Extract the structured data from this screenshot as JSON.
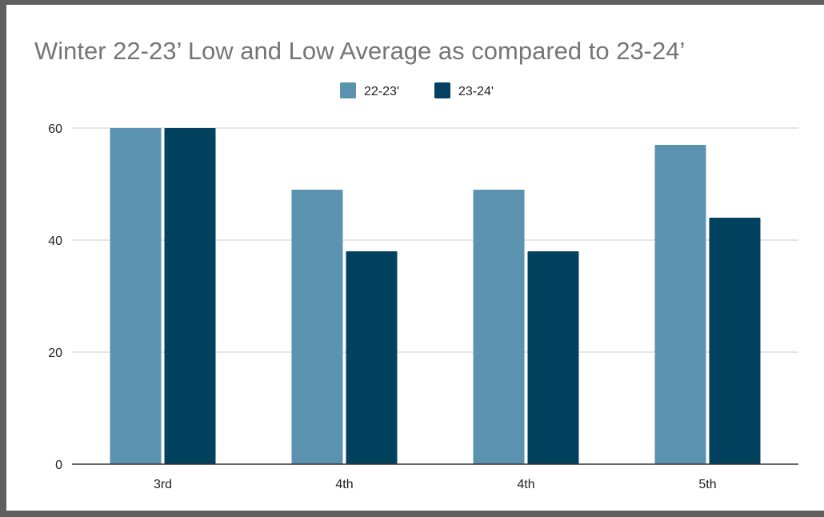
{
  "chart_data": {
    "type": "bar",
    "title": "Winter 22-23’ Low and Low Average as compared to 23-24’",
    "categories": [
      "3rd",
      "4th",
      "4th",
      "5th"
    ],
    "series": [
      {
        "name": "22-23'",
        "values": [
          60,
          49,
          49,
          57
        ],
        "color": "#5b92b0"
      },
      {
        "name": "23-24'",
        "values": [
          60,
          38,
          38,
          44
        ],
        "color": "#02425f"
      }
    ],
    "yticks": [
      0,
      20,
      40,
      60
    ],
    "ylim": [
      0,
      60
    ],
    "grid": true,
    "legend": "top-center"
  }
}
